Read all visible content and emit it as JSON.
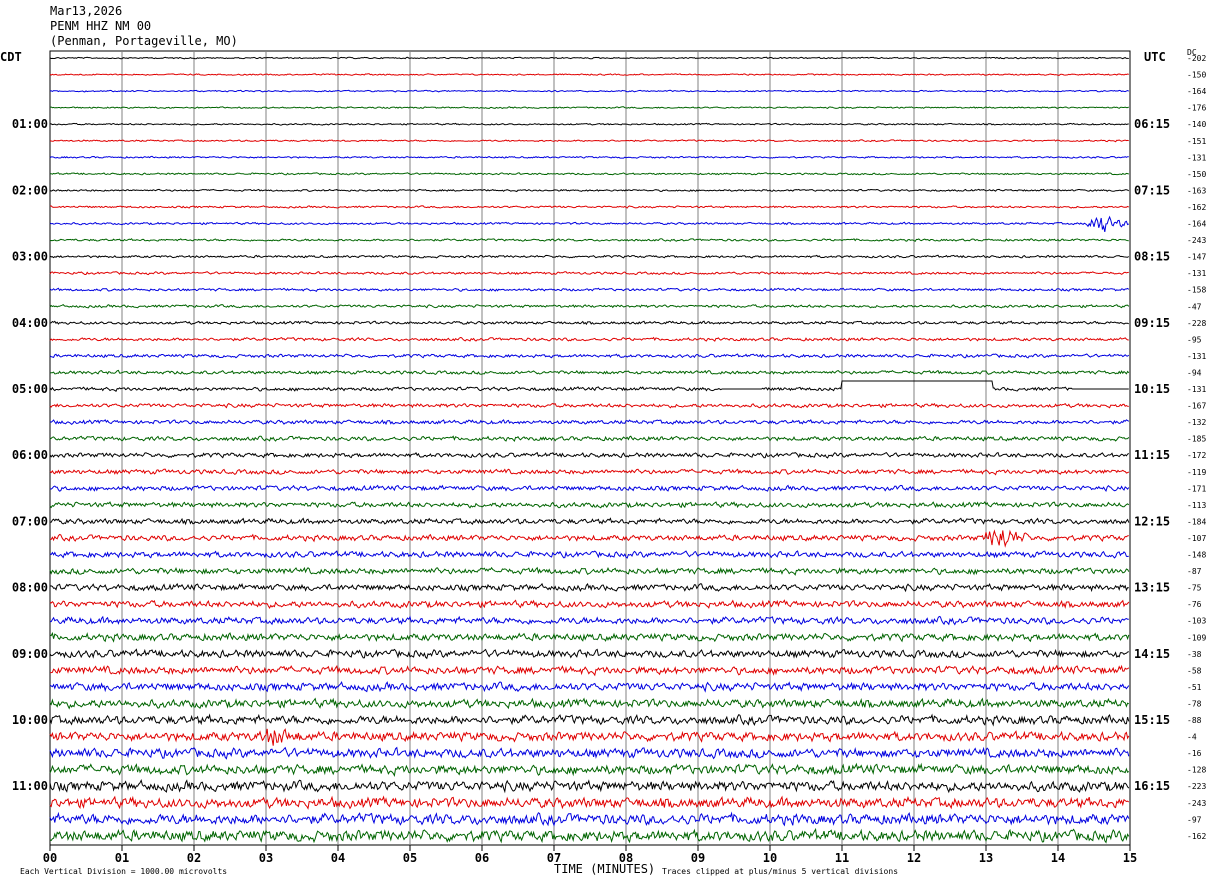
{
  "header": {
    "date": "Mar13,2026",
    "station": "PENM HHZ NM 00",
    "location": "(Penman, Portageville, MO)"
  },
  "left_timezone": "CDT",
  "right_timezone": "UTC",
  "dc_label": "DC",
  "footer": {
    "left": "Each Vertical Division = 1000.00 microvolts",
    "right": "Traces clipped at plus/minus 5 vertical divisions"
  },
  "colors": {
    "trace_cycle": [
      "#000000",
      "#e00000",
      "#0000e0",
      "#006400"
    ],
    "grid": "#808080"
  },
  "chart_data": {
    "type": "line",
    "subtype": "helicorder",
    "xlabel": "TIME (MINUTES)",
    "xlim": [
      0,
      15
    ],
    "x_ticks": [
      "00",
      "01",
      "02",
      "03",
      "04",
      "05",
      "06",
      "07",
      "08",
      "09",
      "10",
      "11",
      "12",
      "13",
      "14",
      "15"
    ],
    "rows_per_hour": 4,
    "minutes_per_row": 15,
    "left_hour_labels": [
      "01:00",
      "02:00",
      "03:00",
      "04:00",
      "05:00",
      "06:00",
      "07:00",
      "08:00",
      "09:00",
      "10:00",
      "11:00"
    ],
    "right_hour_labels": [
      "06:15",
      "07:15",
      "08:15",
      "09:15",
      "10:15",
      "11:15",
      "12:15",
      "13:15",
      "14:15",
      "15:15",
      "16:15"
    ],
    "dc_offsets": [
      -202,
      -150,
      -164,
      -176,
      -140,
      -151,
      -131,
      -150,
      -163,
      -162,
      -164,
      -243,
      -147,
      -131,
      -158,
      -47,
      -228,
      -95,
      -131,
      -94,
      -131,
      -167,
      -132,
      -185,
      -172,
      -119,
      -171,
      -113,
      -184,
      -107,
      -148,
      -87,
      -75,
      -76,
      -103,
      -109,
      -38,
      -58,
      -51,
      -78,
      -88,
      -4,
      -16,
      -128,
      -223,
      -243,
      -97,
      -162
    ],
    "events": [
      {
        "row": 10,
        "minute": 14.5,
        "duration": 0.6,
        "amplitude": 13
      },
      {
        "row": 29,
        "minute": 13.1,
        "duration": 0.5,
        "amplitude": 15
      },
      {
        "row": 41,
        "minute": 3.0,
        "duration": 0.5,
        "amplitude": 9
      }
    ],
    "flatline_segments": [
      {
        "row": 20,
        "start": 9.35,
        "end": 9.9
      },
      {
        "row": 20,
        "start": 11.0,
        "end": 13.1
      },
      {
        "row": 20,
        "start": 14.2,
        "end": 15.0
      }
    ]
  }
}
